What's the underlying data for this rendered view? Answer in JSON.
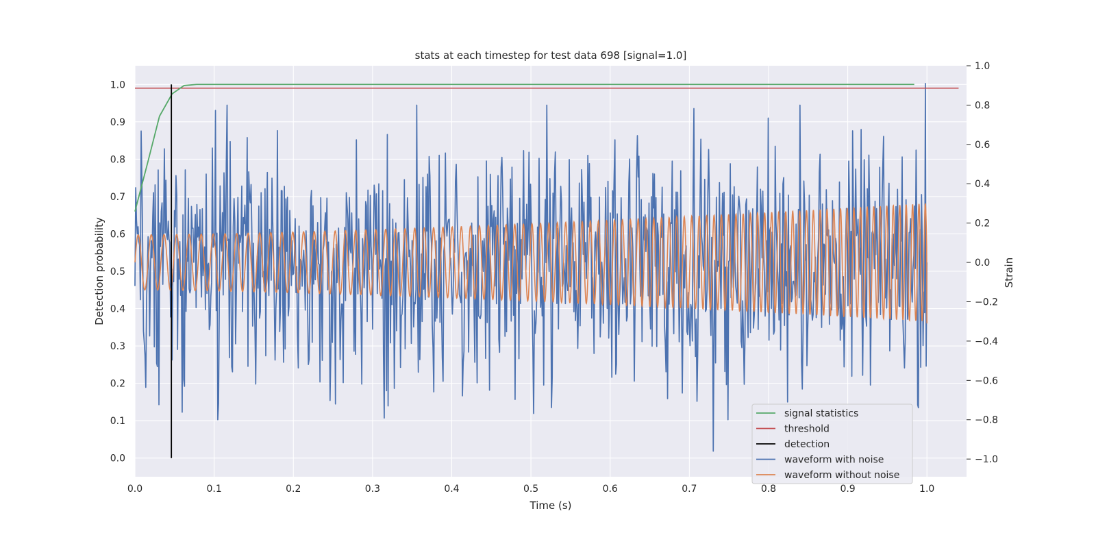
{
  "chart_data": {
    "type": "line",
    "title": "stats at each timestep for test data 698 [signal=1.0]",
    "xlabel": "Time (s)",
    "ylabel_left": "Detection probability",
    "ylabel_right": "Strain",
    "xlim": [
      0.0,
      1.05
    ],
    "ylim_left": [
      -0.05,
      1.05
    ],
    "ylim_right": [
      -1.09,
      1.0
    ],
    "xticks": [
      "0.0",
      "0.1",
      "0.2",
      "0.3",
      "0.4",
      "0.5",
      "0.6",
      "0.7",
      "0.8",
      "0.9",
      "1.0"
    ],
    "yticks_left": [
      "0.0",
      "0.1",
      "0.2",
      "0.3",
      "0.4",
      "0.5",
      "0.6",
      "0.7",
      "0.8",
      "0.9",
      "1.0"
    ],
    "yticks_right": [
      "−1.0",
      "−0.8",
      "−0.6",
      "−0.4",
      "−0.2",
      "0.0",
      "0.2",
      "0.4",
      "0.6",
      "0.8",
      "1.0"
    ],
    "grid": true,
    "legend_position": "bottom-right",
    "colors": {
      "background": "#eaeaf2",
      "grid": "#ffffff",
      "signal_statistics": "#55a868",
      "threshold": "#c44e52",
      "detection": "#000000",
      "waveform_with_noise": "#4c72b0",
      "waveform_without_noise": "#dd8452"
    },
    "series": [
      {
        "name": "signal statistics",
        "axis": "left",
        "x": [
          0.0,
          0.016,
          0.031,
          0.047,
          0.062,
          0.078,
          0.094,
          0.2,
          0.4,
          0.6,
          0.8,
          0.984
        ],
        "y": [
          0.66,
          0.79,
          0.915,
          0.975,
          0.997,
          1.0,
          1.0,
          1.0,
          1.0,
          1.0,
          1.0,
          1.0
        ]
      },
      {
        "name": "threshold",
        "axis": "left",
        "x": [
          0.0,
          1.04
        ],
        "y": [
          0.99,
          0.99
        ]
      },
      {
        "name": "detection",
        "axis": "left",
        "x": [
          0.046,
          0.046
        ],
        "y": [
          0.0,
          1.0
        ]
      },
      {
        "name": "waveform with noise",
        "axis": "right",
        "x_range": [
          0.0,
          1.0
        ],
        "n_points": 1024,
        "peak_samples": [
          {
            "x": 0.0,
            "y": -0.12
          },
          {
            "x": 0.029,
            "y": 0.47
          },
          {
            "x": 0.063,
            "y": -0.63
          },
          {
            "x": 0.18,
            "y": 0.67
          },
          {
            "x": 0.253,
            "y": -0.72
          },
          {
            "x": 0.32,
            "y": -0.73
          },
          {
            "x": 0.52,
            "y": 0.8
          },
          {
            "x": 0.73,
            "y": -0.96
          },
          {
            "x": 0.84,
            "y": 0.8
          },
          {
            "x": 0.998,
            "y": 0.91
          },
          {
            "x": 1.0,
            "y": 0.0
          }
        ]
      },
      {
        "name": "waveform without noise",
        "axis": "right",
        "x_range": [
          0.0,
          1.0
        ],
        "amplitude_start": 0.14,
        "amplitude_end": 0.3,
        "cycles_start_hz": 60,
        "cycles_end_hz": 125,
        "end_value": -0.31
      }
    ]
  }
}
